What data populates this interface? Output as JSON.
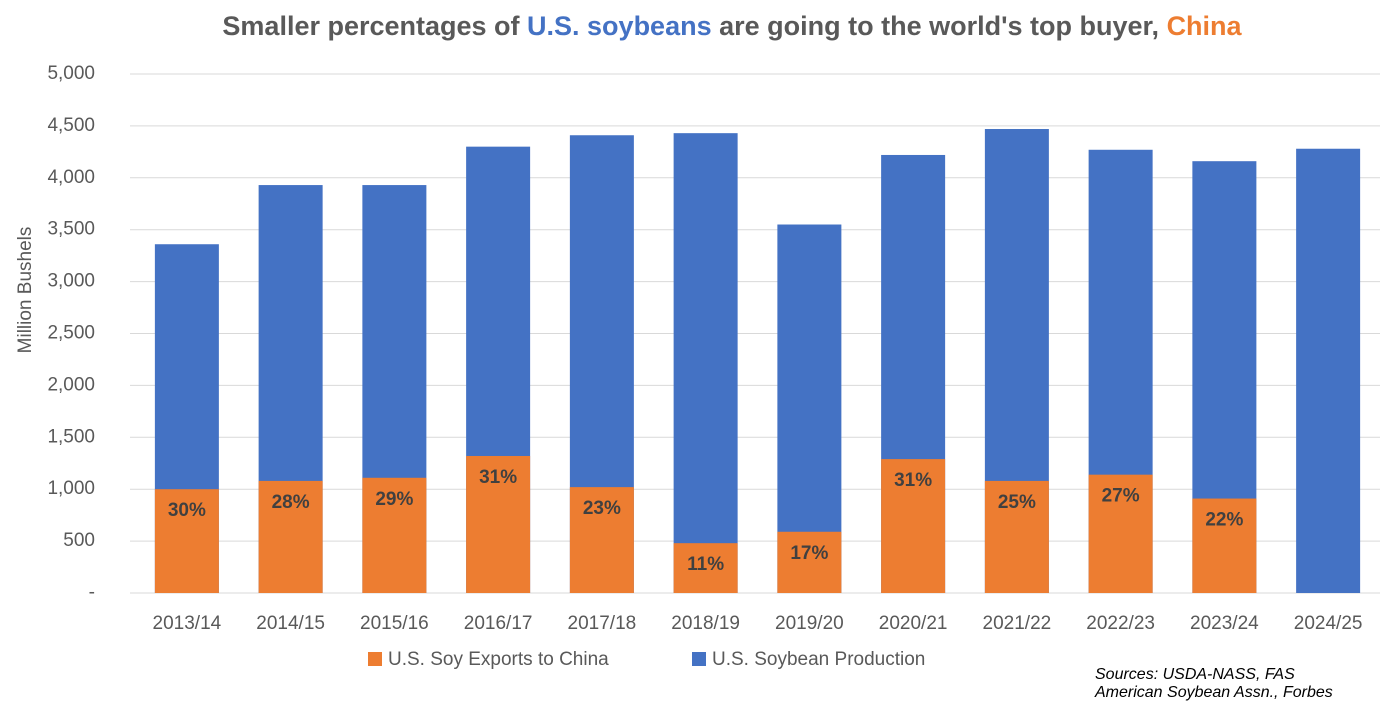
{
  "chart_data": {
    "type": "bar",
    "title": [
      "Smaller percentages of ",
      "U.S. soybeans",
      " are going to the world's top buyer, ",
      "China"
    ],
    "title_colors": [
      "#595959",
      "#4472c4",
      "#595959",
      "#ed7d31"
    ],
    "y_label": "Million Bushels",
    "categories": [
      "2013/14",
      "2014/15",
      "2015/16",
      "2016/17",
      "2017/18",
      "2018/19",
      "2019/20",
      "2020/21",
      "2021/22",
      "2022/23",
      "2023/24",
      "2024/25"
    ],
    "series": [
      {
        "name": "U.S. Soy Exports to China",
        "color": "#ed7d31",
        "values": [
          1000,
          1080,
          1110,
          1320,
          1020,
          480,
          590,
          1290,
          1080,
          1140,
          910,
          null
        ],
        "value_labels": [
          "30%",
          "28%",
          "29%",
          "31%",
          "23%",
          "11%",
          "17%",
          "31%",
          "25%",
          "27%",
          "22%",
          null
        ]
      },
      {
        "name": "U.S. Soybean Production",
        "color": "#4472c4",
        "values": [
          3360,
          3930,
          3930,
          4300,
          4410,
          4430,
          3550,
          4220,
          4470,
          4270,
          4160,
          4280
        ]
      }
    ],
    "ylim": [
      0,
      5000
    ],
    "yticks": [
      {
        "value": 0,
        "label": "-"
      },
      500,
      {
        "value": 1000,
        "label": "1,000"
      },
      {
        "value": 1500,
        "label": "1,500"
      },
      {
        "value": 2000,
        "label": "2,000"
      },
      {
        "value": 2500,
        "label": "2,500"
      },
      {
        "value": 3000,
        "label": "3,000"
      },
      {
        "value": 3500,
        "label": "3,500"
      },
      {
        "value": 4000,
        "label": "4,000"
      },
      {
        "value": 4500,
        "label": "4,500"
      },
      {
        "value": 5000,
        "label": "5,000"
      }
    ],
    "grid": true,
    "legend": "bottom",
    "source": [
      "Sources: USDA-NASS, FAS",
      "American Soybean Assn., Forbes"
    ]
  }
}
